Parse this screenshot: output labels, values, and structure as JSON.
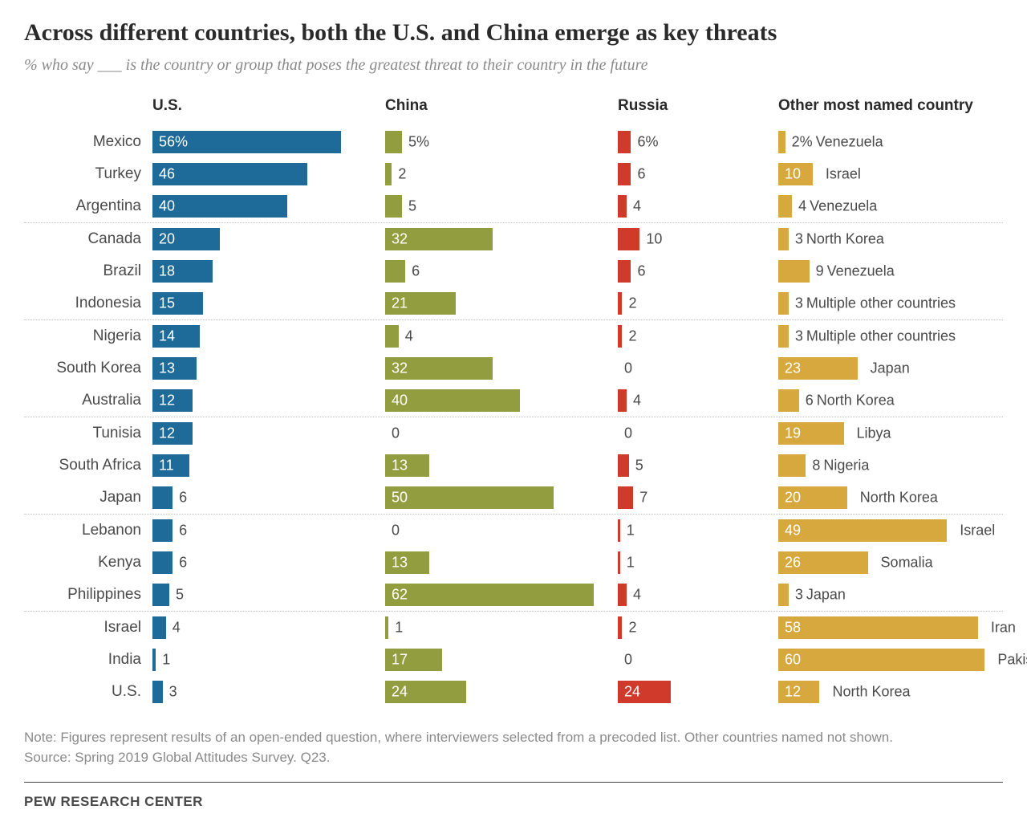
{
  "title": "Across different countries, both the U.S. and China emerge as key threats",
  "subtitle": "% who say ___ is the country or group that poses the greatest threat to their country in the future",
  "columns": [
    "U.S.",
    "China",
    "Russia",
    "Other most named country"
  ],
  "colors": {
    "us": "#1e6a98",
    "china": "#919d3f",
    "russia": "#d03a2b",
    "other": "#d7a83d",
    "text_dark": "#4a4a4a",
    "text_light": "#ffffff"
  },
  "max_scale": 62,
  "col_width_bar": 260,
  "col_width_russia": 170,
  "col_width_other": 280,
  "inside_threshold": 10,
  "groups": [
    {
      "rows": [
        {
          "country": "Mexico",
          "us": 56,
          "china": 5,
          "russia": 6,
          "other_val": 2,
          "other_name": "Venezuela",
          "pct_row": true
        },
        {
          "country": "Turkey",
          "us": 46,
          "china": 2,
          "russia": 6,
          "other_val": 10,
          "other_name": "Israel"
        },
        {
          "country": "Argentina",
          "us": 40,
          "china": 5,
          "russia": 4,
          "other_val": 4,
          "other_name": "Venezuela"
        }
      ]
    },
    {
      "rows": [
        {
          "country": "Canada",
          "us": 20,
          "china": 32,
          "russia": 10,
          "other_val": 3,
          "other_name": "North Korea"
        },
        {
          "country": "Brazil",
          "us": 18,
          "china": 6,
          "russia": 6,
          "other_val": 9,
          "other_name": "Venezuela"
        },
        {
          "country": "Indonesia",
          "us": 15,
          "china": 21,
          "russia": 2,
          "other_val": 3,
          "other_name": "Multiple other countries"
        }
      ]
    },
    {
      "rows": [
        {
          "country": "Nigeria",
          "us": 14,
          "china": 4,
          "russia": 2,
          "other_val": 3,
          "other_name": "Multiple other countries"
        },
        {
          "country": "South Korea",
          "us": 13,
          "china": 32,
          "russia": 0,
          "other_val": 23,
          "other_name": "Japan"
        },
        {
          "country": "Australia",
          "us": 12,
          "china": 40,
          "russia": 4,
          "other_val": 6,
          "other_name": "North Korea"
        }
      ]
    },
    {
      "rows": [
        {
          "country": "Tunisia",
          "us": 12,
          "china": 0,
          "russia": 0,
          "other_val": 19,
          "other_name": "Libya"
        },
        {
          "country": "South Africa",
          "us": 11,
          "china": 13,
          "russia": 5,
          "other_val": 8,
          "other_name": "Nigeria"
        },
        {
          "country": "Japan",
          "us": 6,
          "china": 50,
          "russia": 7,
          "other_val": 20,
          "other_name": "North Korea"
        }
      ]
    },
    {
      "rows": [
        {
          "country": "Lebanon",
          "us": 6,
          "china": 0,
          "russia": 1,
          "other_val": 49,
          "other_name": "Israel"
        },
        {
          "country": "Kenya",
          "us": 6,
          "china": 13,
          "russia": 1,
          "other_val": 26,
          "other_name": "Somalia"
        },
        {
          "country": "Philippines",
          "us": 5,
          "china": 62,
          "russia": 4,
          "other_val": 3,
          "other_name": "Japan"
        }
      ]
    },
    {
      "rows": [
        {
          "country": "Israel",
          "us": 4,
          "china": 1,
          "russia": 2,
          "other_val": 58,
          "other_name": "Iran"
        },
        {
          "country": "India",
          "us": 1,
          "china": 17,
          "russia": 0,
          "other_val": 60,
          "other_name": "Pakistan"
        },
        {
          "country": "U.S.",
          "us": 3,
          "china": 24,
          "russia": 24,
          "other_val": 12,
          "other_name": "North Korea"
        }
      ]
    }
  ],
  "note": "Note: Figures represent results of an open-ended question, where interviewers selected from a precoded list. Other countries named not shown.",
  "source_text": "Source: Spring 2019 Global Attitudes Survey. Q23.",
  "brand": "PEW RESEARCH CENTER"
}
